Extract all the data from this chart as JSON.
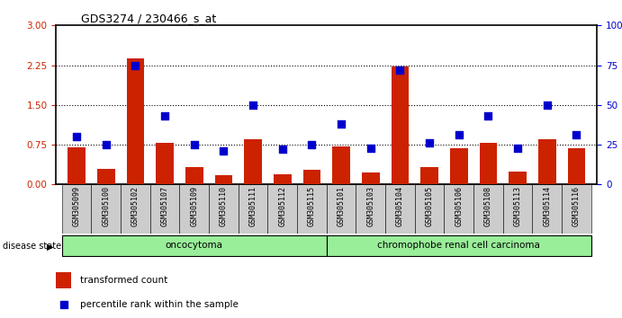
{
  "title": "GDS3274 / 230466_s_at",
  "samples": [
    "GSM305099",
    "GSM305100",
    "GSM305102",
    "GSM305107",
    "GSM305109",
    "GSM305110",
    "GSM305111",
    "GSM305112",
    "GSM305115",
    "GSM305101",
    "GSM305103",
    "GSM305104",
    "GSM305105",
    "GSM305106",
    "GSM305108",
    "GSM305113",
    "GSM305114",
    "GSM305116"
  ],
  "transformed_count": [
    0.7,
    0.3,
    2.38,
    0.78,
    0.33,
    0.18,
    0.85,
    0.2,
    0.28,
    0.72,
    0.22,
    2.22,
    0.33,
    0.68,
    0.78,
    0.25,
    0.85,
    0.68
  ],
  "percentile_rank": [
    30,
    25,
    75,
    43,
    25,
    21,
    50,
    22,
    25,
    38,
    23,
    72,
    26,
    31,
    43,
    23,
    50,
    31
  ],
  "group1_label": "oncocytoma",
  "group2_label": "chromophobe renal cell carcinoma",
  "group1_count": 9,
  "group2_count": 9,
  "bar_color": "#cc2200",
  "dot_color": "#0000cc",
  "left_yticks": [
    0,
    0.75,
    1.5,
    2.25,
    3
  ],
  "right_yticks": [
    0,
    25,
    50,
    75,
    100
  ],
  "ylim_left": [
    0,
    3
  ],
  "ylim_right": [
    0,
    100
  ],
  "background_color": "#ffffff",
  "group_bg_color": "#99ee99",
  "tick_label_bg": "#cccccc",
  "disease_state_label": "disease state",
  "legend_bar_label": "transformed count",
  "legend_dot_label": "percentile rank within the sample"
}
